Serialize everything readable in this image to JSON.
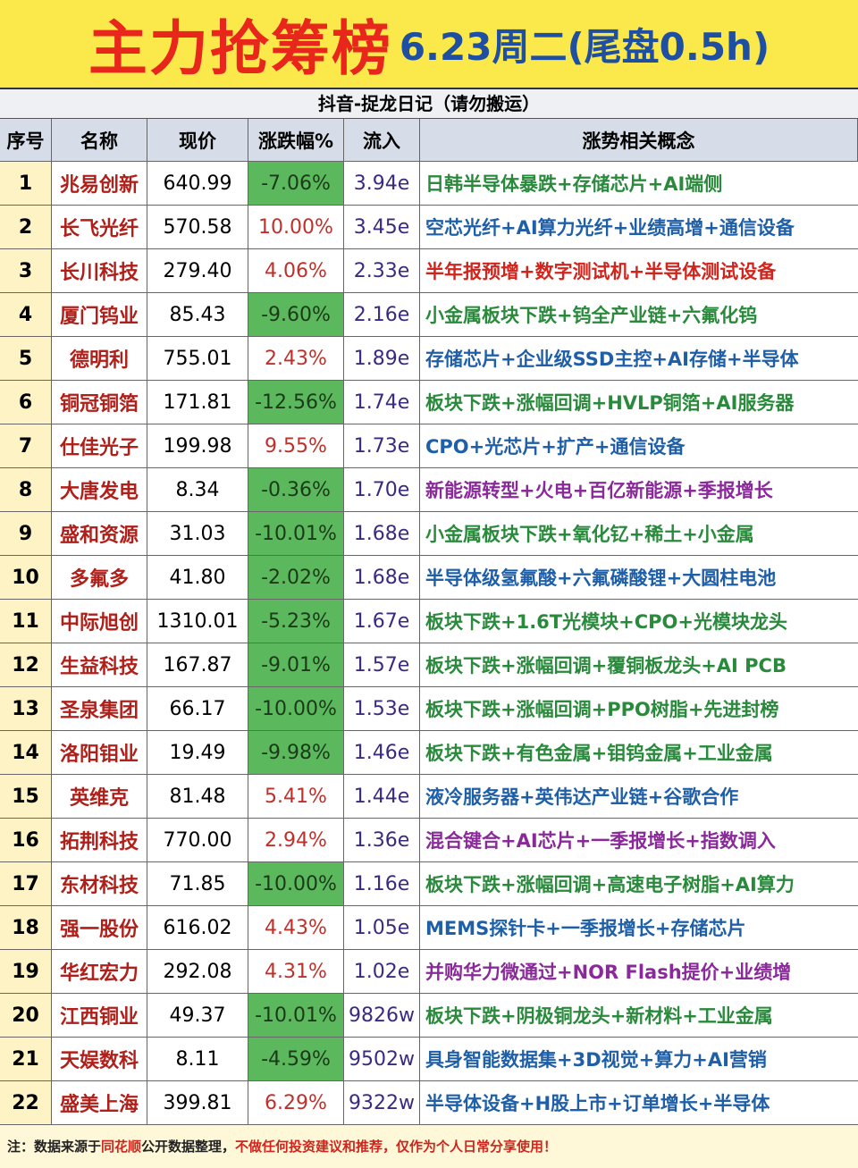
{
  "header": {
    "title": "主力抢筹榜",
    "subtitle": "6.23周二(尾盘0.5h)",
    "source": "抖音-捉龙日记（请勿搬运）"
  },
  "table": {
    "columns": [
      "序号",
      "名称",
      "现价",
      "涨跌幅%",
      "流入",
      "涨势相关概念"
    ],
    "rows": [
      [
        "1",
        "兆易创新",
        "640.99",
        "-7.06%",
        "3.94e",
        "日韩半导体暴跌+存储芯片+AI端侧"
      ],
      [
        "2",
        "长飞光纤",
        "570.58",
        "10.00%",
        "3.45e",
        "空芯光纤+AI算力光纤+业绩高增+通信设备"
      ],
      [
        "3",
        "长川科技",
        "279.40",
        "4.06%",
        "2.33e",
        "半年报预增+数字测试机+半导体测试设备"
      ],
      [
        "4",
        "厦门钨业",
        "85.43",
        "-9.60%",
        "2.16e",
        "小金属板块下跌+钨全产业链+六氟化钨"
      ],
      [
        "5",
        "德明利",
        "755.01",
        "2.43%",
        "1.89e",
        "存储芯片+企业级SSD主控+AI存储+半导体"
      ],
      [
        "6",
        "铜冠铜箔",
        "171.81",
        "-12.56%",
        "1.74e",
        "板块下跌+涨幅回调+HVLP铜箔+AI服务器"
      ],
      [
        "7",
        "仕佳光子",
        "199.98",
        "9.55%",
        "1.73e",
        "CPO+光芯片+扩产+通信设备"
      ],
      [
        "8",
        "大唐发电",
        "8.34",
        "-0.36%",
        "1.70e",
        "新能源转型+火电+百亿新能源+季报增长"
      ],
      [
        "9",
        "盛和资源",
        "31.03",
        "-10.01%",
        "1.68e",
        "小金属板块下跌+氧化钇+稀土+小金属"
      ],
      [
        "10",
        "多氟多",
        "41.80",
        "-2.02%",
        "1.68e",
        "半导体级氢氟酸+六氟磷酸锂+大圆柱电池"
      ],
      [
        "11",
        "中际旭创",
        "1310.01",
        "-5.23%",
        "1.67e",
        "板块下跌+1.6T光模块+CPO+光模块龙头"
      ],
      [
        "12",
        "生益科技",
        "167.87",
        "-9.01%",
        "1.57e",
        "板块下跌+涨幅回调+覆铜板龙头+AI PCB"
      ],
      [
        "13",
        "圣泉集团",
        "66.17",
        "-10.00%",
        "1.53e",
        "板块下跌+涨幅回调+PPO树脂+先进封榜"
      ],
      [
        "14",
        "洛阳钼业",
        "19.49",
        "-9.98%",
        "1.46e",
        "板块下跌+有色金属+钼钨金属+工业金属"
      ],
      [
        "15",
        "英维克",
        "81.48",
        "5.41%",
        "1.44e",
        "液冷服务器+英伟达产业链+谷歌合作"
      ],
      [
        "16",
        "拓荆科技",
        "770.00",
        "2.94%",
        "1.36e",
        "混合键合+AI芯片+一季报增长+指数调入"
      ],
      [
        "17",
        "东材科技",
        "71.85",
        "-10.00%",
        "1.16e",
        "板块下跌+涨幅回调+高速电子树脂+AI算力"
      ],
      [
        "18",
        "强一股份",
        "616.02",
        "4.43%",
        "1.05e",
        "MEMS探针卡+一季报增长+存储芯片"
      ],
      [
        "19",
        "华红宏力",
        "292.08",
        "4.31%",
        "1.02e",
        "并购华力微通过+NOR Flash提价+业绩增"
      ],
      [
        "20",
        "江西铜业",
        "49.37",
        "-10.01%",
        "9826w",
        "板块下跌+阴极铜龙头+新材料+工业金属"
      ],
      [
        "21",
        "天娱数科",
        "8.11",
        "-4.59%",
        "9502w",
        "具身智能数据集+3D视觉+算力+AI营销"
      ],
      [
        "22",
        "盛美上海",
        "399.81",
        "6.29%",
        "9322w",
        "半导体设备+H股上市+订单增长+半导体"
      ]
    ],
    "concept_colors": [
      "#2a8a3c",
      "#1f5fa8",
      "#d0241c",
      "#2a8a3c",
      "#1f5fa8",
      "#2a8a3c",
      "#1f5fa8",
      "#8a2a9a",
      "#2a8a3c",
      "#1f5fa8",
      "#2a8a3c",
      "#2a8a3c",
      "#2a8a3c",
      "#2a8a3c",
      "#1f5fa8",
      "#8a2a9a",
      "#2a8a3c",
      "#1f5fa8",
      "#8a2a9a",
      "#2a8a3c",
      "#1f5fa8",
      "#1f5fa8"
    ]
  },
  "footer": {
    "parts": [
      {
        "text": "注：数据来源于",
        "color": "#222222"
      },
      {
        "text": "同花顺",
        "color": "#d0241c"
      },
      {
        "text": "公开数据整理，",
        "color": "#222222"
      },
      {
        "text": "不做任何投资建议和推荐，仅作为个人日常分享使用！",
        "color": "#d0241c"
      }
    ]
  }
}
